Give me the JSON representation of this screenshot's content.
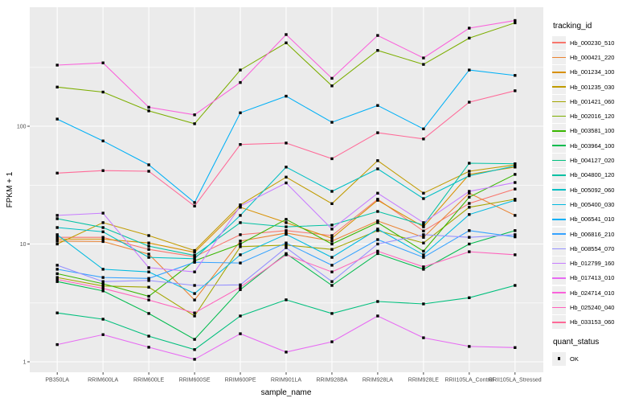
{
  "chart_data": {
    "type": "line",
    "title": "",
    "xlabel": "sample_name",
    "ylabel": "FPKM + 1",
    "x_axis": {
      "label": "sample_name",
      "categories": [
        "PB350LA",
        "RRIM600LA",
        "RRIM600LE",
        "RRIM600SE",
        "RRIM600PE",
        "RRIM901LA",
        "RRIM928BA",
        "RRIM928LA",
        "RRIM928LE",
        "RRII105LA_Control",
        "RRII105LA_Stressed"
      ]
    },
    "y_axis": {
      "label": "FPKM + 1",
      "scale": "log10",
      "ticks": [
        1,
        10,
        100
      ],
      "minor_gridlines": [
        3.16,
        31.6,
        316
      ],
      "range_approx": [
        0.8,
        1000
      ]
    },
    "legend": {
      "color_title": "tracking_id",
      "shape_title": "quant_status",
      "shape_items": [
        {
          "label": "OK",
          "marker": "filled-black-square"
        }
      ]
    },
    "style": {
      "panel_bg": "#EBEBEB",
      "gridline_color": "#FFFFFF",
      "point_color": "#000000",
      "tick_text_color": "#4D4D4D",
      "legend_key_bg": "#EFEFEF"
    },
    "series": [
      {
        "name": "Hb_000230_510",
        "color": "#F8766D",
        "values": [
          11.4,
          11.4,
          9.0,
          7.8,
          12.0,
          13.0,
          11.8,
          24.0,
          12.9,
          22.1,
          29.3
        ]
      },
      {
        "name": "Hb_000421_220",
        "color": "#EA8331",
        "values": [
          10.6,
          10.5,
          8.2,
          3.35,
          10.6,
          12.4,
          10.6,
          15.7,
          11.4,
          27.0,
          17.5
        ]
      },
      {
        "name": "Hb_001234_100",
        "color": "#D89000",
        "values": [
          11.0,
          11.0,
          10.2,
          8.5,
          20.5,
          15.2,
          11.2,
          23.5,
          14.0,
          39.0,
          45.0
        ]
      },
      {
        "name": "Hb_001235_030",
        "color": "#C09B00",
        "values": [
          10.0,
          15.2,
          11.8,
          8.8,
          21.5,
          37.0,
          22.0,
          51.0,
          27.0,
          41.5,
          47.0
        ]
      },
      {
        "name": "Hb_001421_060",
        "color": "#A3A500",
        "values": [
          5.2,
          4.4,
          4.3,
          2.45,
          9.5,
          9.8,
          9.0,
          13.0,
          10.2,
          20.5,
          24.0
        ]
      },
      {
        "name": "Hb_002016_120",
        "color": "#7CAE00",
        "values": [
          215,
          195,
          135,
          105,
          300,
          510,
          220,
          440,
          335,
          560,
          755
        ]
      },
      {
        "name": "Hb_003581_100",
        "color": "#39B600",
        "values": [
          5.6,
          4.6,
          3.6,
          7.2,
          10.0,
          16.2,
          10.0,
          15.2,
          8.7,
          25.0,
          39.0
        ]
      },
      {
        "name": "Hb_003964_100",
        "color": "#00BB4E",
        "values": [
          4.8,
          4.0,
          2.57,
          1.55,
          4.1,
          8.3,
          4.45,
          8.3,
          6.1,
          10.0,
          13.0
        ]
      },
      {
        "name": "Hb_004127_020",
        "color": "#00BF7D",
        "values": [
          2.6,
          2.3,
          1.65,
          1.27,
          2.45,
          3.36,
          2.57,
          3.25,
          3.1,
          3.5,
          4.45
        ]
      },
      {
        "name": "Hb_004800_120",
        "color": "#00C1A3",
        "values": [
          16.4,
          13.8,
          9.6,
          8.0,
          15.2,
          14.0,
          14.5,
          18.9,
          14.5,
          48.5,
          48.0
        ]
      },
      {
        "name": "Hb_005092_060",
        "color": "#00BFC4",
        "values": [
          13.8,
          12.7,
          7.7,
          7.5,
          17.5,
          45.0,
          28.0,
          43.5,
          24.3,
          38.0,
          46.0
        ]
      },
      {
        "name": "Hb_005400_030",
        "color": "#00BAE0",
        "values": [
          12.0,
          6.1,
          5.8,
          3.8,
          8.1,
          12.1,
          7.7,
          13.4,
          8.1,
          17.8,
          23.5
        ]
      },
      {
        "name": "Hb_006541_010",
        "color": "#00B0F6",
        "values": [
          115,
          75,
          47,
          22.5,
          130,
          180,
          108,
          150,
          95,
          300,
          270
        ]
      },
      {
        "name": "Hb_006816_210",
        "color": "#35A2FF",
        "values": [
          6.1,
          5.2,
          5.1,
          7.0,
          6.9,
          10.2,
          6.6,
          10.9,
          7.7,
          13.0,
          11.5
        ]
      },
      {
        "name": "Hb_008554_070",
        "color": "#9590FF",
        "values": [
          6.6,
          4.8,
          4.9,
          4.45,
          4.5,
          9.3,
          4.8,
          10.0,
          12.0,
          11.4,
          12.0
        ]
      },
      {
        "name": "Hb_012799_160",
        "color": "#C77CFF",
        "values": [
          17.5,
          18.3,
          6.3,
          5.8,
          21.0,
          33.0,
          13.4,
          27.0,
          15.2,
          28.0,
          33.3
        ]
      },
      {
        "name": "Hb_017413_010",
        "color": "#E76BF3",
        "values": [
          1.4,
          1.7,
          1.33,
          1.05,
          1.73,
          1.21,
          1.48,
          2.45,
          1.6,
          1.35,
          1.32
        ]
      },
      {
        "name": "Hb_024714_010",
        "color": "#FA62DB",
        "values": [
          330,
          345,
          145,
          125,
          235,
          600,
          255,
          590,
          380,
          680,
          790
        ]
      },
      {
        "name": "Hb_025240_040",
        "color": "#FF62BC",
        "values": [
          5.0,
          4.2,
          3.35,
          2.6,
          4.3,
          8.1,
          5.8,
          8.7,
          6.4,
          8.6,
          8.1
        ]
      },
      {
        "name": "Hb_033153_060",
        "color": "#FF6A98",
        "values": [
          40,
          42,
          41.5,
          21,
          70,
          72,
          53,
          88,
          78,
          160,
          200
        ]
      }
    ]
  }
}
